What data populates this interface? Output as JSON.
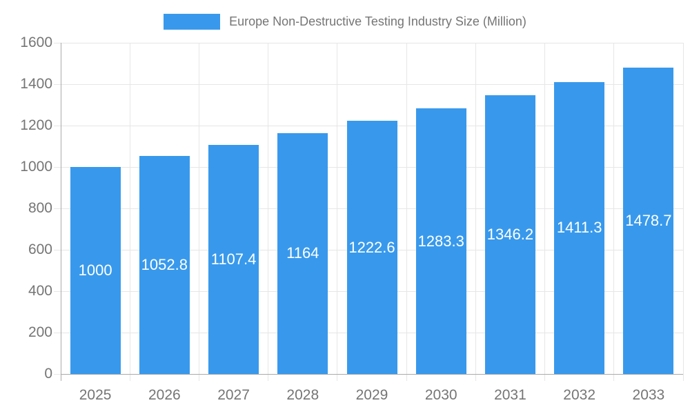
{
  "chart_data": {
    "type": "bar",
    "title": "Europe Non-Destructive Testing Industry Size (Million)",
    "categories": [
      "2025",
      "2026",
      "2027",
      "2028",
      "2029",
      "2030",
      "2031",
      "2032",
      "2033"
    ],
    "values": [
      1000,
      1052.8,
      1107.4,
      1164,
      1222.6,
      1283.3,
      1346.2,
      1411.3,
      1478.7
    ],
    "bar_labels": [
      "1000",
      "1052.8",
      "1107.4",
      "1164",
      "1222.6",
      "1283.3",
      "1346.2",
      "1411.3",
      "1478.7"
    ],
    "y_ticks": [
      "0",
      "200",
      "400",
      "600",
      "800",
      "1000",
      "1200",
      "1400",
      "1600"
    ],
    "y_tick_values": [
      0,
      200,
      400,
      600,
      800,
      1000,
      1200,
      1400,
      1600
    ],
    "ylim": [
      0,
      1600
    ],
    "xlabel": "",
    "ylabel": "",
    "grid": true,
    "legend_position": "top",
    "colors": {
      "bar": "#3899EC",
      "axis_text": "#757575",
      "bar_label_text": "#FFFFFF",
      "grid_line": "#E6E6E6",
      "axis_line": "#AAAAAA",
      "background": "#FFFFFF"
    }
  }
}
